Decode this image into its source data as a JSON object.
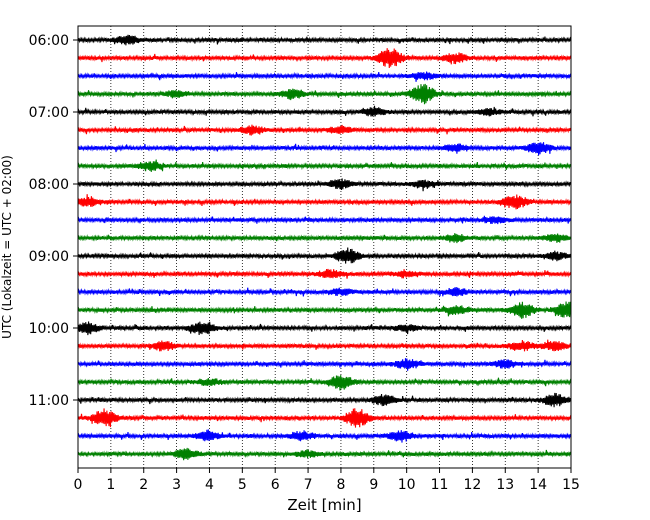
{
  "chart_data": {
    "type": "line",
    "subtype": "helicorder",
    "xlabel": "Zeit  [min]",
    "ylabel": "UTC (Lokalzeit = UTC + 02:00)",
    "xlim": [
      0,
      15
    ],
    "xticks": [
      "0",
      "1",
      "2",
      "3",
      "4",
      "5",
      "6",
      "7",
      "8",
      "9",
      "10",
      "11",
      "12",
      "13",
      "14",
      "15"
    ],
    "grid": "vertical dotted",
    "trace_interval_minutes": 15,
    "line_colors": [
      "#000000",
      "#ff0000",
      "#0000ff",
      "#008000"
    ],
    "y_ticks": [
      {
        "label": "06:00",
        "row": 0
      },
      {
        "label": "07:00",
        "row": 4
      },
      {
        "label": "08:00",
        "row": 8
      },
      {
        "label": "09:00",
        "row": 12
      },
      {
        "label": "10:00",
        "row": 16
      },
      {
        "label": "11:00",
        "row": 20
      }
    ],
    "traces": [
      {
        "start": "06:00",
        "color": "#000000",
        "events": [
          [
            1.5,
            0.55
          ]
        ]
      },
      {
        "start": "06:15",
        "color": "#ff0000",
        "events": [
          [
            9.5,
            1.3
          ],
          [
            11.5,
            0.6
          ]
        ]
      },
      {
        "start": "06:30",
        "color": "#0000ff",
        "events": [
          [
            10.5,
            0.45
          ]
        ]
      },
      {
        "start": "06:45",
        "color": "#008000",
        "events": [
          [
            6.5,
            0.6
          ],
          [
            10.5,
            1.3
          ],
          [
            3,
            0.4
          ]
        ]
      },
      {
        "start": "07:00",
        "color": "#000000",
        "events": [
          [
            9,
            0.5
          ],
          [
            12.5,
            0.4
          ]
        ]
      },
      {
        "start": "07:15",
        "color": "#ff0000",
        "events": [
          [
            5.3,
            0.6
          ],
          [
            8,
            0.45
          ]
        ]
      },
      {
        "start": "07:30",
        "color": "#0000ff",
        "events": [
          [
            14,
            0.8
          ],
          [
            11.5,
            0.5
          ]
        ]
      },
      {
        "start": "07:45",
        "color": "#008000",
        "events": [
          [
            2.2,
            0.6
          ]
        ]
      },
      {
        "start": "08:00",
        "color": "#000000",
        "events": [
          [
            8,
            0.6
          ],
          [
            10.5,
            0.5
          ]
        ]
      },
      {
        "start": "08:15",
        "color": "#ff0000",
        "events": [
          [
            13.3,
            0.9
          ],
          [
            0.3,
            0.6
          ]
        ]
      },
      {
        "start": "08:30",
        "color": "#0000ff",
        "events": [
          [
            12.7,
            0.4
          ]
        ]
      },
      {
        "start": "08:45",
        "color": "#008000",
        "events": [
          [
            11.5,
            0.5
          ],
          [
            14.5,
            0.5
          ]
        ]
      },
      {
        "start": "09:00",
        "color": "#000000",
        "events": [
          [
            8.2,
            1.0
          ],
          [
            14.5,
            0.5
          ]
        ]
      },
      {
        "start": "09:15",
        "color": "#ff0000",
        "events": [
          [
            7.7,
            0.5
          ],
          [
            10,
            0.4
          ]
        ]
      },
      {
        "start": "09:30",
        "color": "#0000ff",
        "events": [
          [
            8,
            0.45
          ],
          [
            11.5,
            0.45
          ]
        ]
      },
      {
        "start": "09:45",
        "color": "#008000",
        "events": [
          [
            13.5,
            1.0
          ],
          [
            11.5,
            0.5
          ],
          [
            14.9,
            1.2
          ]
        ]
      },
      {
        "start": "10:00",
        "color": "#000000",
        "events": [
          [
            3.8,
            0.9
          ],
          [
            0.3,
            0.7
          ],
          [
            10,
            0.4
          ]
        ]
      },
      {
        "start": "10:15",
        "color": "#ff0000",
        "events": [
          [
            2.6,
            0.6
          ],
          [
            13.5,
            0.6
          ],
          [
            14.5,
            0.6
          ]
        ]
      },
      {
        "start": "10:30",
        "color": "#0000ff",
        "events": [
          [
            10,
            0.65
          ],
          [
            13,
            0.5
          ]
        ]
      },
      {
        "start": "10:45",
        "color": "#008000",
        "events": [
          [
            8,
            0.9
          ],
          [
            4,
            0.4
          ]
        ]
      },
      {
        "start": "11:00",
        "color": "#000000",
        "events": [
          [
            9.3,
            0.7
          ],
          [
            14.5,
            0.8
          ]
        ]
      },
      {
        "start": "11:15",
        "color": "#ff0000",
        "events": [
          [
            0.8,
            1.1
          ],
          [
            8.5,
            1.2
          ]
        ]
      },
      {
        "start": "11:30",
        "color": "#0000ff",
        "events": [
          [
            9.8,
            0.7
          ],
          [
            3.9,
            0.6
          ],
          [
            6.8,
            0.6
          ]
        ]
      },
      {
        "start": "11:45",
        "color": "#008000",
        "events": [
          [
            3.3,
            0.7
          ],
          [
            7,
            0.4
          ]
        ]
      }
    ]
  }
}
